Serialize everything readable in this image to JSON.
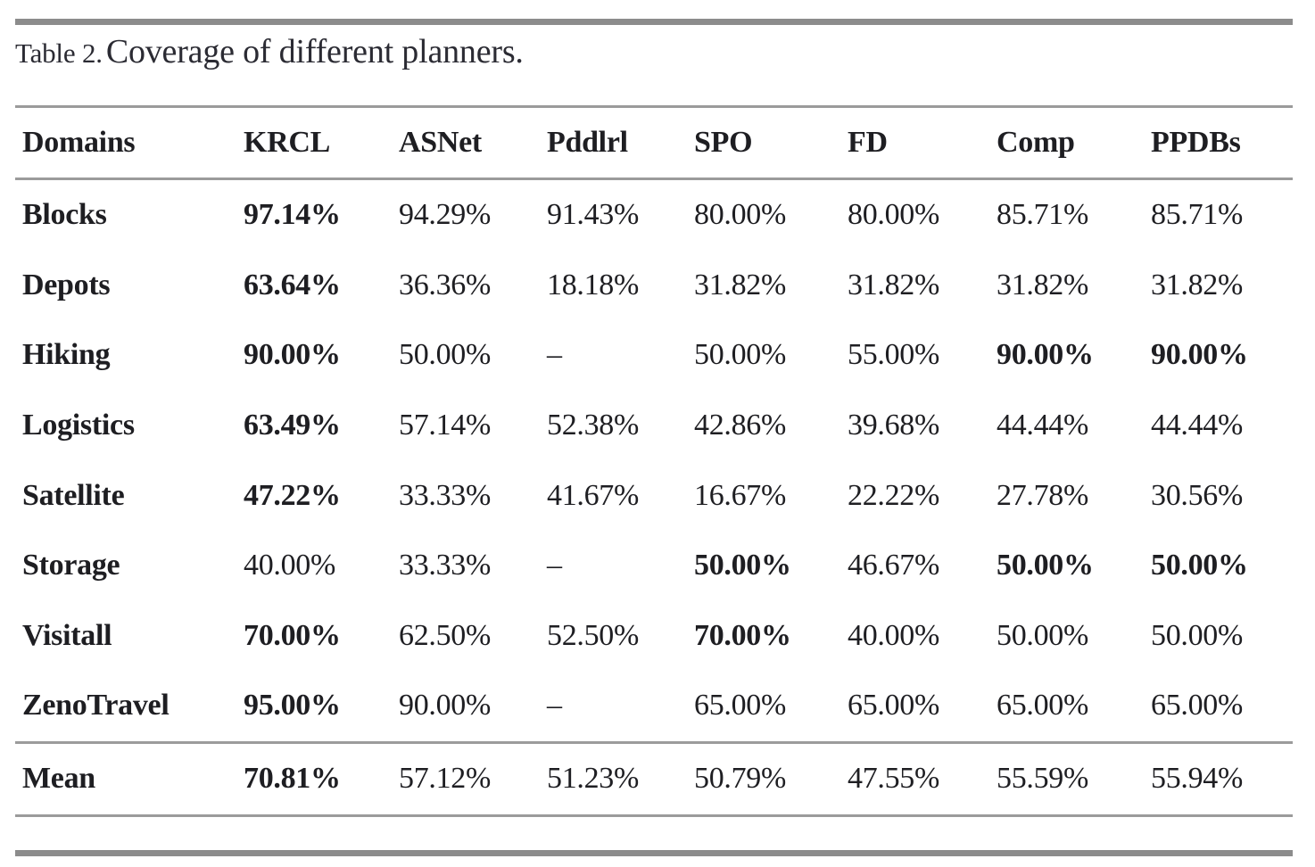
{
  "caption": {
    "label": "Table 2.",
    "text": "Coverage of different planners."
  },
  "colors": {
    "text": "#1e1e22",
    "caption_text": "#2b2b33",
    "rule_thick": "#8c8c8c",
    "rule_thin": "#9b9b9b",
    "background": "#ffffff"
  },
  "table": {
    "columns": [
      "Domains",
      "KRCL",
      "ASNet",
      "Pddlrl",
      "SPO",
      "FD",
      "Comp",
      "PPDBs"
    ],
    "rows": [
      {
        "domain": "Blocks",
        "cells": [
          {
            "text": "97.14%",
            "bold": true
          },
          {
            "text": "94.29%",
            "bold": false
          },
          {
            "text": "91.43%",
            "bold": false
          },
          {
            "text": "80.00%",
            "bold": false
          },
          {
            "text": "80.00%",
            "bold": false
          },
          {
            "text": "85.71%",
            "bold": false
          },
          {
            "text": "85.71%",
            "bold": false
          }
        ]
      },
      {
        "domain": "Depots",
        "cells": [
          {
            "text": "63.64%",
            "bold": true
          },
          {
            "text": "36.36%",
            "bold": false
          },
          {
            "text": "18.18%",
            "bold": false
          },
          {
            "text": "31.82%",
            "bold": false
          },
          {
            "text": "31.82%",
            "bold": false
          },
          {
            "text": "31.82%",
            "bold": false
          },
          {
            "text": "31.82%",
            "bold": false
          }
        ]
      },
      {
        "domain": "Hiking",
        "cells": [
          {
            "text": "90.00%",
            "bold": true
          },
          {
            "text": "50.00%",
            "bold": false
          },
          {
            "text": "–",
            "bold": false
          },
          {
            "text": "50.00%",
            "bold": false
          },
          {
            "text": "55.00%",
            "bold": false
          },
          {
            "text": "90.00%",
            "bold": true
          },
          {
            "text": "90.00%",
            "bold": true
          }
        ]
      },
      {
        "domain": "Logistics",
        "cells": [
          {
            "text": "63.49%",
            "bold": true
          },
          {
            "text": "57.14%",
            "bold": false
          },
          {
            "text": "52.38%",
            "bold": false
          },
          {
            "text": "42.86%",
            "bold": false
          },
          {
            "text": "39.68%",
            "bold": false
          },
          {
            "text": "44.44%",
            "bold": false
          },
          {
            "text": "44.44%",
            "bold": false
          }
        ]
      },
      {
        "domain": "Satellite",
        "cells": [
          {
            "text": "47.22%",
            "bold": true
          },
          {
            "text": "33.33%",
            "bold": false
          },
          {
            "text": "41.67%",
            "bold": false
          },
          {
            "text": "16.67%",
            "bold": false
          },
          {
            "text": "22.22%",
            "bold": false
          },
          {
            "text": "27.78%",
            "bold": false
          },
          {
            "text": "30.56%",
            "bold": false
          }
        ]
      },
      {
        "domain": "Storage",
        "cells": [
          {
            "text": "40.00%",
            "bold": false
          },
          {
            "text": "33.33%",
            "bold": false
          },
          {
            "text": "–",
            "bold": false
          },
          {
            "text": "50.00%",
            "bold": true
          },
          {
            "text": "46.67%",
            "bold": false
          },
          {
            "text": "50.00%",
            "bold": true
          },
          {
            "text": "50.00%",
            "bold": true
          }
        ]
      },
      {
        "domain": "Visitall",
        "cells": [
          {
            "text": "70.00%",
            "bold": true
          },
          {
            "text": "62.50%",
            "bold": false
          },
          {
            "text": "52.50%",
            "bold": false
          },
          {
            "text": "70.00%",
            "bold": true
          },
          {
            "text": "40.00%",
            "bold": false
          },
          {
            "text": "50.00%",
            "bold": false
          },
          {
            "text": "50.00%",
            "bold": false
          }
        ]
      },
      {
        "domain": "ZenoTravel",
        "cells": [
          {
            "text": "95.00%",
            "bold": true
          },
          {
            "text": "90.00%",
            "bold": false
          },
          {
            "text": "–",
            "bold": false
          },
          {
            "text": "65.00%",
            "bold": false
          },
          {
            "text": "65.00%",
            "bold": false
          },
          {
            "text": "65.00%",
            "bold": false
          },
          {
            "text": "65.00%",
            "bold": false
          }
        ]
      }
    ],
    "summary_row": {
      "domain": "Mean",
      "cells": [
        {
          "text": "70.81%",
          "bold": true
        },
        {
          "text": "57.12%",
          "bold": false
        },
        {
          "text": "51.23%",
          "bold": false
        },
        {
          "text": "50.79%",
          "bold": false
        },
        {
          "text": "47.55%",
          "bold": false
        },
        {
          "text": "55.59%",
          "bold": false
        },
        {
          "text": "55.94%",
          "bold": false
        }
      ]
    }
  }
}
